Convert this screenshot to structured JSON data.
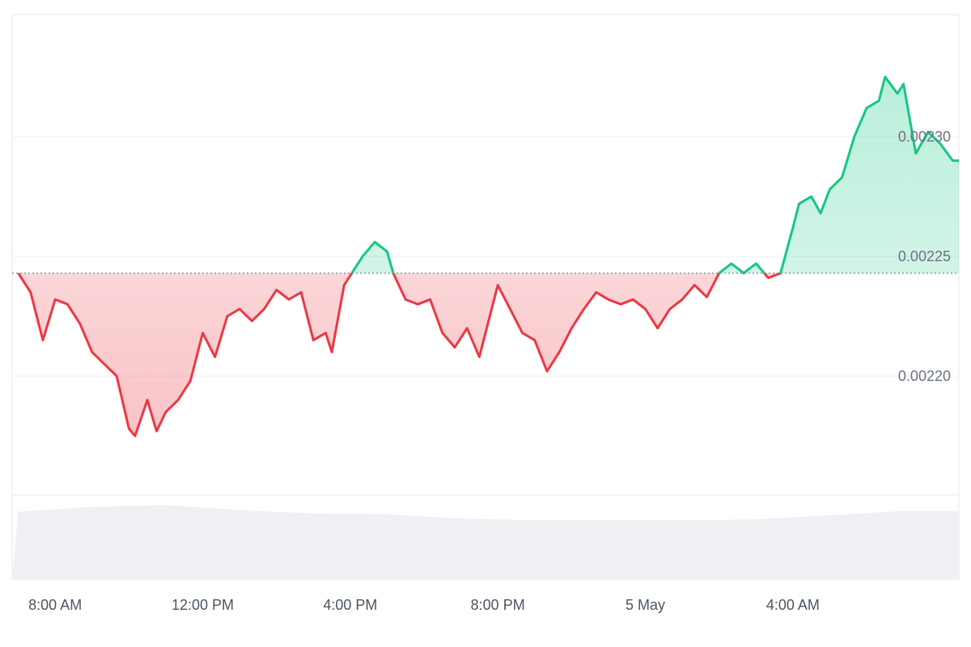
{
  "chart_data": {
    "type": "area",
    "title": "",
    "xlabel": "",
    "ylabel": "",
    "baseline": 0.002243,
    "ylim": [
      0.00215,
      0.00235
    ],
    "y_ticks": [
      {
        "value": 0.0022,
        "label": "0.00220"
      },
      {
        "value": 0.00225,
        "label": "0.00225"
      },
      {
        "value": 0.0023,
        "label": "0.00230"
      }
    ],
    "x_range": [
      "2024-05-04 06:50",
      "2024-05-05 08:30"
    ],
    "x_ticks": [
      {
        "time": "2024-05-04 08:00",
        "label": "8:00 AM"
      },
      {
        "time": "2024-05-04 12:00",
        "label": "12:00 PM"
      },
      {
        "time": "2024-05-04 16:00",
        "label": "4:00 PM"
      },
      {
        "time": "2024-05-04 20:00",
        "label": "8:00 PM"
      },
      {
        "time": "2024-05-05 00:00",
        "label": "5 May"
      },
      {
        "time": "2024-05-05 04:00",
        "label": "4:00 AM"
      }
    ],
    "colors": {
      "up": "#16c784",
      "down": "#ea3943",
      "grid": "#eef0f3",
      "volume": "#eef0f4"
    },
    "series": [
      {
        "points": [
          [
            "2024-05-04 07:00",
            0.002243
          ],
          [
            "2024-05-04 07:20",
            0.002235
          ],
          [
            "2024-05-04 07:40",
            0.002215
          ],
          [
            "2024-05-04 08:00",
            0.002232
          ],
          [
            "2024-05-04 08:20",
            0.00223
          ],
          [
            "2024-05-04 08:40",
            0.002222
          ],
          [
            "2024-05-04 09:00",
            0.00221
          ],
          [
            "2024-05-04 09:20",
            0.002205
          ],
          [
            "2024-05-04 09:40",
            0.0022
          ],
          [
            "2024-05-04 10:00",
            0.002178
          ],
          [
            "2024-05-04 10:10",
            0.002175
          ],
          [
            "2024-05-04 10:30",
            0.00219
          ],
          [
            "2024-05-04 10:45",
            0.002177
          ],
          [
            "2024-05-04 11:00",
            0.002185
          ],
          [
            "2024-05-04 11:20",
            0.00219
          ],
          [
            "2024-05-04 11:40",
            0.002198
          ],
          [
            "2024-05-04 12:00",
            0.002218
          ],
          [
            "2024-05-04 12:20",
            0.002208
          ],
          [
            "2024-05-04 12:40",
            0.002225
          ],
          [
            "2024-05-04 13:00",
            0.002228
          ],
          [
            "2024-05-04 13:20",
            0.002223
          ],
          [
            "2024-05-04 13:40",
            0.002228
          ],
          [
            "2024-05-04 14:00",
            0.002236
          ],
          [
            "2024-05-04 14:20",
            0.002232
          ],
          [
            "2024-05-04 14:40",
            0.002235
          ],
          [
            "2024-05-04 15:00",
            0.002215
          ],
          [
            "2024-05-04 15:20",
            0.002218
          ],
          [
            "2024-05-04 15:30",
            0.00221
          ],
          [
            "2024-05-04 15:50",
            0.002238
          ],
          [
            "2024-05-04 16:00",
            0.002242
          ],
          [
            "2024-05-04 16:20",
            0.00225
          ],
          [
            "2024-05-04 16:40",
            0.002256
          ],
          [
            "2024-05-04 17:00",
            0.002252
          ],
          [
            "2024-05-04 17:10",
            0.002243
          ],
          [
            "2024-05-04 17:30",
            0.002232
          ],
          [
            "2024-05-04 17:50",
            0.00223
          ],
          [
            "2024-05-04 18:10",
            0.002232
          ],
          [
            "2024-05-04 18:30",
            0.002218
          ],
          [
            "2024-05-04 18:50",
            0.002212
          ],
          [
            "2024-05-04 19:10",
            0.00222
          ],
          [
            "2024-05-04 19:30",
            0.002208
          ],
          [
            "2024-05-04 19:50",
            0.002228
          ],
          [
            "2024-05-04 20:00",
            0.002238
          ],
          [
            "2024-05-04 20:20",
            0.002228
          ],
          [
            "2024-05-04 20:40",
            0.002218
          ],
          [
            "2024-05-04 21:00",
            0.002215
          ],
          [
            "2024-05-04 21:20",
            0.002202
          ],
          [
            "2024-05-04 21:40",
            0.00221
          ],
          [
            "2024-05-04 22:00",
            0.00222
          ],
          [
            "2024-05-04 22:20",
            0.002228
          ],
          [
            "2024-05-04 22:40",
            0.002235
          ],
          [
            "2024-05-04 23:00",
            0.002232
          ],
          [
            "2024-05-04 23:20",
            0.00223
          ],
          [
            "2024-05-04 23:40",
            0.002232
          ],
          [
            "2024-05-05 00:00",
            0.002228
          ],
          [
            "2024-05-05 00:20",
            0.00222
          ],
          [
            "2024-05-05 00:40",
            0.002228
          ],
          [
            "2024-05-05 01:00",
            0.002232
          ],
          [
            "2024-05-05 01:20",
            0.002238
          ],
          [
            "2024-05-05 01:40",
            0.002233
          ],
          [
            "2024-05-05 02:00",
            0.002243
          ],
          [
            "2024-05-05 02:20",
            0.002247
          ],
          [
            "2024-05-05 02:40",
            0.002243
          ],
          [
            "2024-05-05 03:00",
            0.002247
          ],
          [
            "2024-05-05 03:20",
            0.002241
          ],
          [
            "2024-05-05 03:40",
            0.002243
          ],
          [
            "2024-05-05 04:00",
            0.002262
          ],
          [
            "2024-05-05 04:10",
            0.002272
          ],
          [
            "2024-05-05 04:30",
            0.002275
          ],
          [
            "2024-05-05 04:45",
            0.002268
          ],
          [
            "2024-05-05 05:00",
            0.002278
          ],
          [
            "2024-05-05 05:20",
            0.002283
          ],
          [
            "2024-05-05 05:40",
            0.0023
          ],
          [
            "2024-05-05 06:00",
            0.002312
          ],
          [
            "2024-05-05 06:20",
            0.002315
          ],
          [
            "2024-05-05 06:30",
            0.002325
          ],
          [
            "2024-05-05 06:50",
            0.002318
          ],
          [
            "2024-05-05 07:00",
            0.002322
          ],
          [
            "2024-05-05 07:20",
            0.002293
          ],
          [
            "2024-05-05 07:40",
            0.002302
          ],
          [
            "2024-05-05 08:00",
            0.002297
          ],
          [
            "2024-05-05 08:20",
            0.00229
          ],
          [
            "2024-05-05 08:30",
            0.00229
          ]
        ]
      }
    ],
    "volume": {
      "points": [
        [
          "2024-05-04 06:50",
          0.0
        ],
        [
          "2024-05-04 07:00",
          0.8
        ],
        [
          "2024-05-04 09:00",
          0.86
        ],
        [
          "2024-05-04 11:00",
          0.88
        ],
        [
          "2024-05-04 13:00",
          0.82
        ],
        [
          "2024-05-04 15:00",
          0.78
        ],
        [
          "2024-05-04 17:00",
          0.77
        ],
        [
          "2024-05-04 19:00",
          0.72
        ],
        [
          "2024-05-04 21:00",
          0.7
        ],
        [
          "2024-05-04 23:00",
          0.7
        ],
        [
          "2024-05-05 01:00",
          0.7
        ],
        [
          "2024-05-05 03:00",
          0.71
        ],
        [
          "2024-05-05 05:00",
          0.76
        ],
        [
          "2024-05-05 07:00",
          0.81
        ],
        [
          "2024-05-05 08:30",
          0.81
        ],
        [
          "2024-05-05 08:30",
          0.0
        ]
      ]
    }
  }
}
